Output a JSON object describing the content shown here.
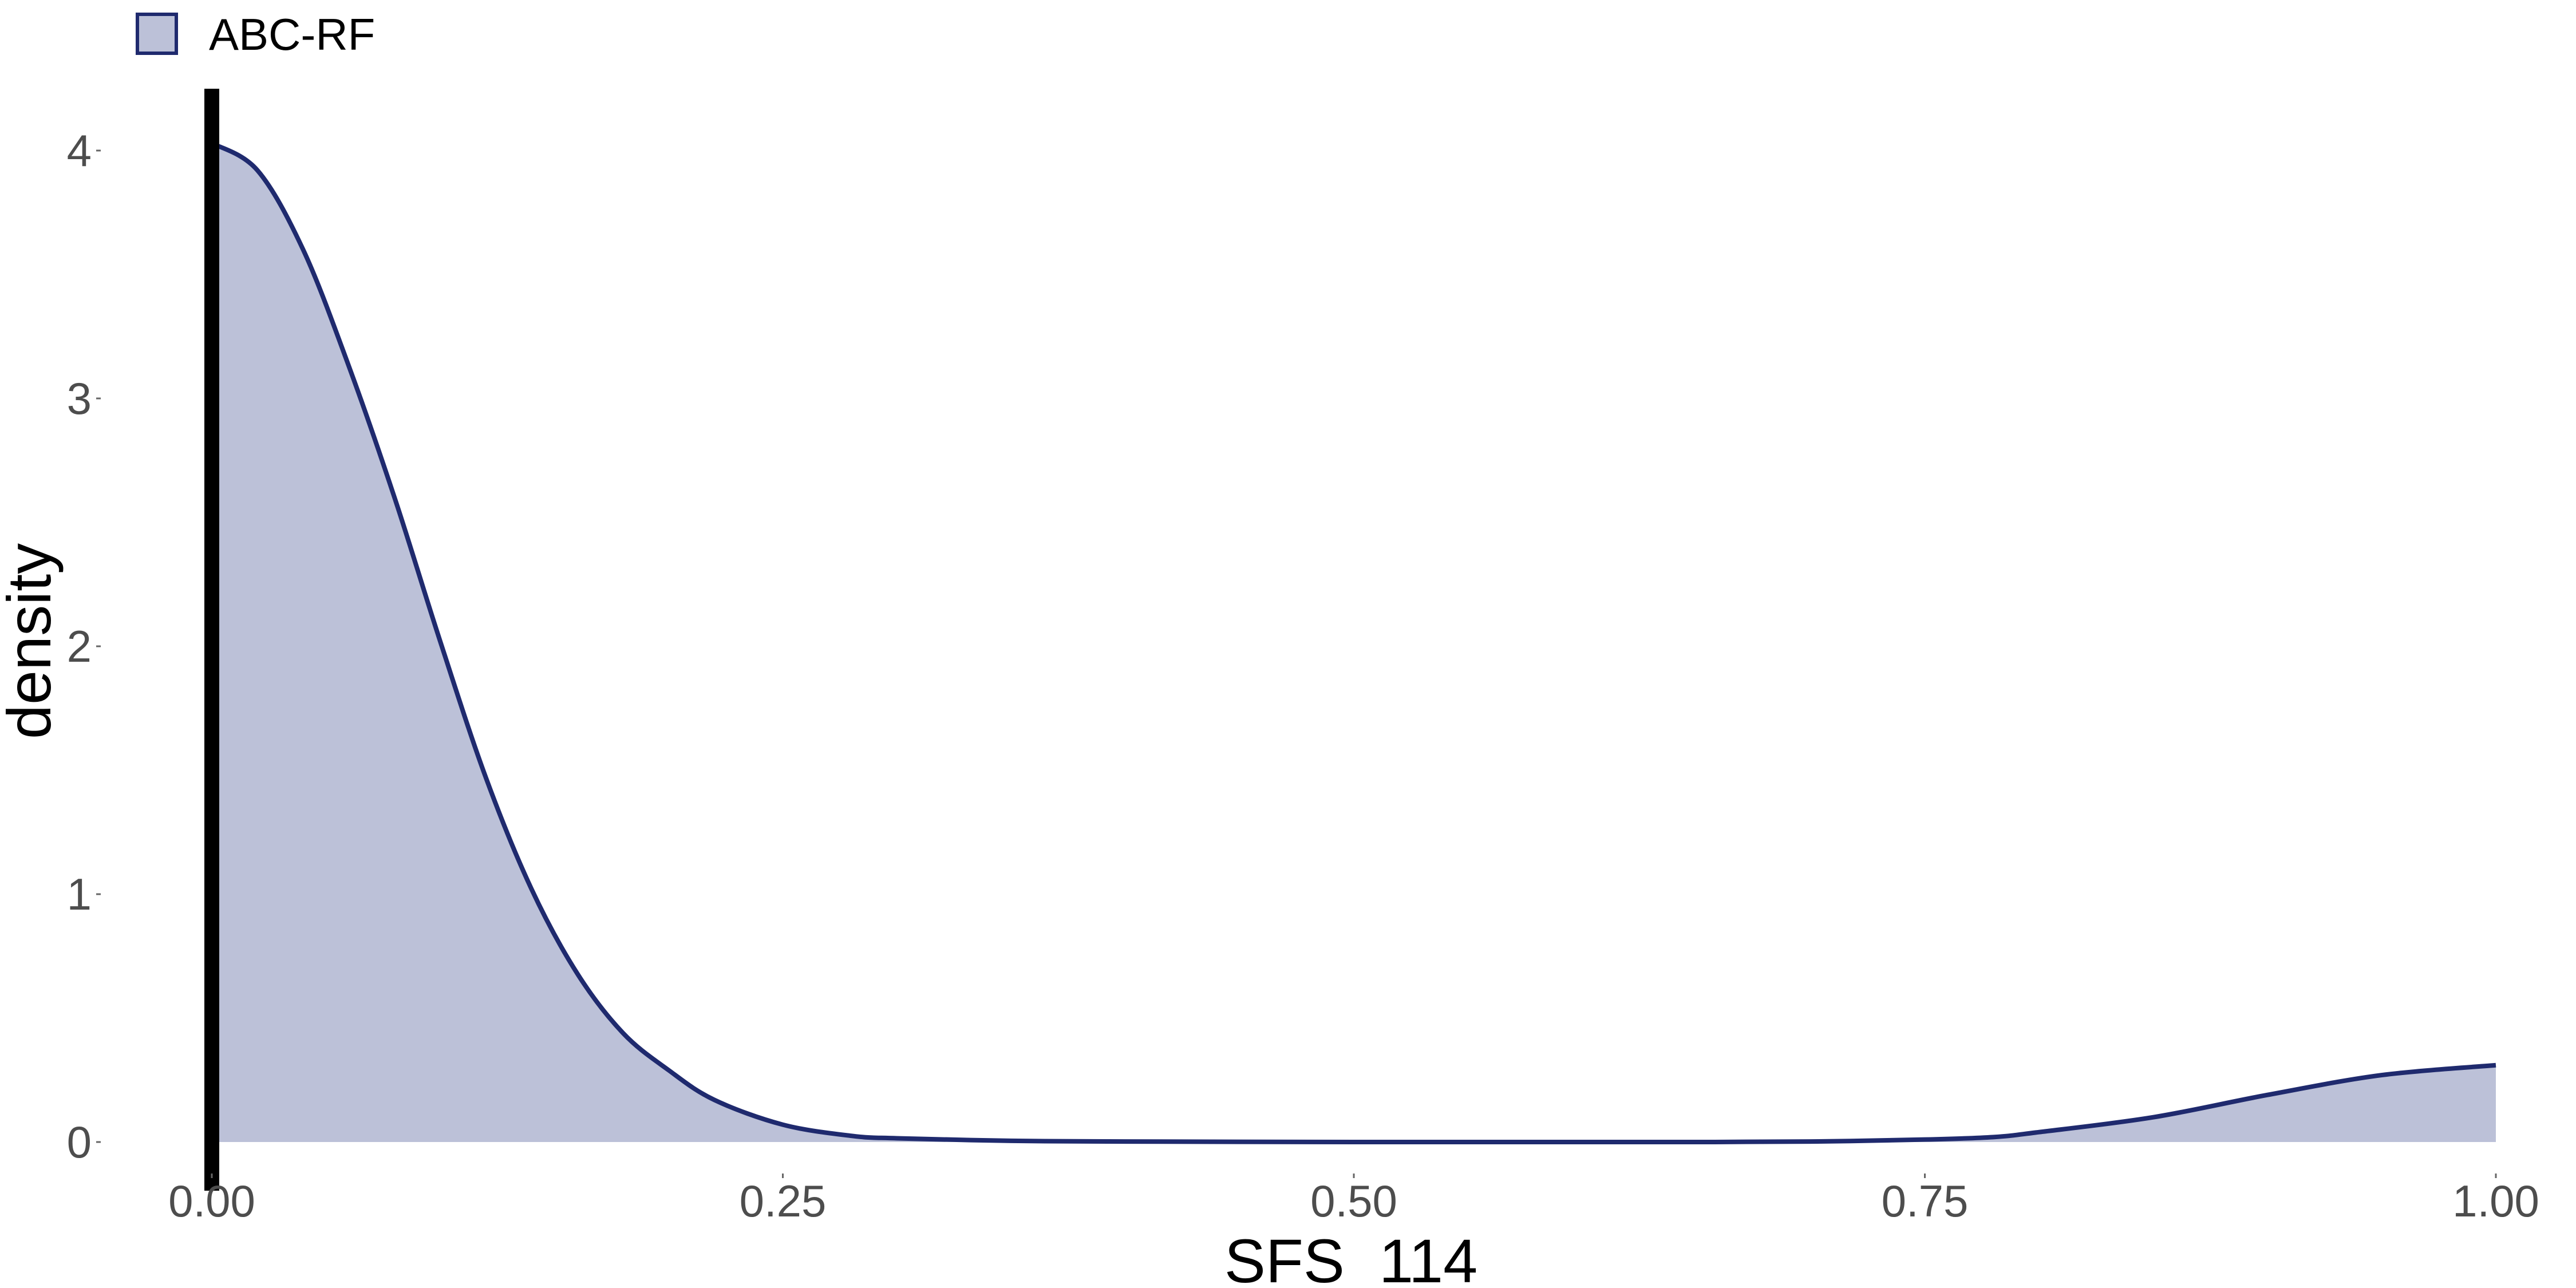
{
  "chart_data": {
    "type": "area",
    "title": "",
    "xlabel": "SFS_114",
    "ylabel": "density",
    "xlim": [
      0,
      1
    ],
    "ylim": [
      0,
      4.2
    ],
    "x_ticks": [
      "0.00",
      "0.25",
      "0.50",
      "0.75",
      "1.00"
    ],
    "y_ticks": [
      "0",
      "1",
      "2",
      "3",
      "4"
    ],
    "x_tick_values": [
      0,
      0.25,
      0.5,
      0.75,
      1.0
    ],
    "y_tick_values": [
      0,
      1,
      2,
      3,
      4
    ],
    "grid": false,
    "legend_position": "top-left",
    "vertical_line_x": 0,
    "series": [
      {
        "name": "ABC-RF",
        "fill_color": "#bcc1d8",
        "line_color": "#1f2a6e",
        "x": [
          0.0,
          0.02,
          0.04,
          0.06,
          0.08,
          0.1,
          0.12,
          0.14,
          0.16,
          0.18,
          0.2,
          0.22,
          0.25,
          0.28,
          0.3,
          0.35,
          0.4,
          0.5,
          0.6,
          0.65,
          0.7,
          0.75,
          0.78,
          0.8,
          0.85,
          0.9,
          0.95,
          1.0
        ],
        "y": [
          4.03,
          3.92,
          3.6,
          3.13,
          2.6,
          2.02,
          1.47,
          1.02,
          0.68,
          0.44,
          0.29,
          0.17,
          0.07,
          0.025,
          0.015,
          0.005,
          0.002,
          0.0,
          0.0,
          0.0,
          0.002,
          0.01,
          0.02,
          0.04,
          0.1,
          0.19,
          0.27,
          0.31
        ]
      }
    ]
  }
}
